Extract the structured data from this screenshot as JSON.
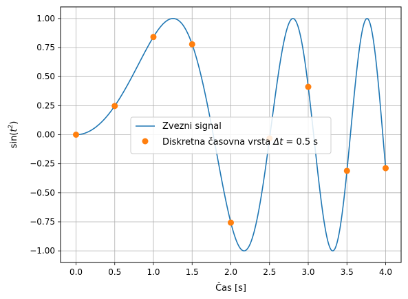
{
  "chart_data": {
    "type": "line",
    "xlabel": "Čas [s]",
    "ylabel_base": "sin(",
    "ylabel_var": "t",
    "ylabel_sup": "2",
    "ylabel_close": ")",
    "xlim": [
      -0.2,
      4.2
    ],
    "ylim": [
      -1.1,
      1.1
    ],
    "xticks": [
      0.0,
      0.5,
      1.0,
      1.5,
      2.0,
      2.5,
      3.0,
      3.5,
      4.0
    ],
    "xtick_labels": [
      "0.0",
      "0.5",
      "1.0",
      "1.5",
      "2.0",
      "2.5",
      "3.0",
      "3.5",
      "4.0"
    ],
    "yticks": [
      -1.0,
      -0.75,
      -0.5,
      -0.25,
      0.0,
      0.25,
      0.5,
      0.75,
      1.0
    ],
    "ytick_labels": [
      "−1.00",
      "−0.75",
      "−0.50",
      "−0.25",
      "0.00",
      "0.25",
      "0.50",
      "0.75",
      "1.00"
    ],
    "grid": true,
    "legend_position": "center-right",
    "series": [
      {
        "name": "Zvezni signal",
        "kind": "line",
        "color": "#1f77b4",
        "function": "sin(t^2)",
        "x_range": [
          0.0,
          4.0
        ]
      },
      {
        "name_prefix": "Diskretna časovna vrsta ",
        "name_math": "Δt",
        "name_suffix": " = 0.5 s",
        "kind": "scatter",
        "color": "#ff7f0e",
        "x": [
          0.0,
          0.5,
          1.0,
          1.5,
          2.0,
          2.5,
          3.0,
          3.5,
          4.0
        ],
        "y": [
          0.0,
          0.247,
          0.841,
          0.778,
          -0.757,
          -0.032,
          0.412,
          -0.311,
          -0.288
        ]
      }
    ]
  }
}
